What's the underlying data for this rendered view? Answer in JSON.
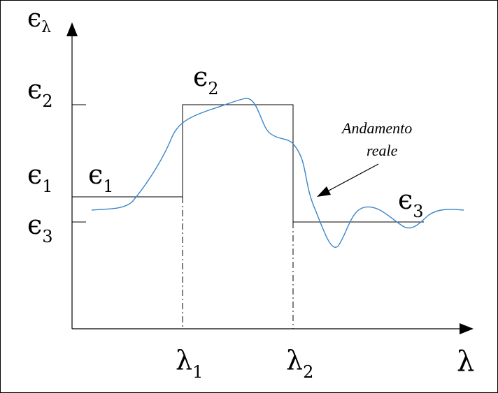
{
  "labels": {
    "y_axis_symbol": "ϵ",
    "y_axis_sub": "λ",
    "x_axis_symbol": "λ",
    "tick_eps2_symbol": "ϵ",
    "tick_eps2_sub": "2",
    "tick_eps1_symbol": "ϵ",
    "tick_eps1_sub": "1",
    "tick_eps3_symbol": "ϵ",
    "tick_eps3_sub": "3",
    "step1_symbol": "ϵ",
    "step1_sub": "1",
    "step2_symbol": "ϵ",
    "step2_sub": "2",
    "step3_symbol": "ϵ",
    "step3_sub": "3",
    "lambda1_symbol": "λ",
    "lambda1_sub": "1",
    "lambda2_symbol": "λ",
    "lambda2_sub": "2",
    "annotation_line1": "Andamento",
    "annotation_line2": "reale"
  },
  "colors": {
    "curve": "#3a86c8",
    "ink": "#000000"
  }
}
